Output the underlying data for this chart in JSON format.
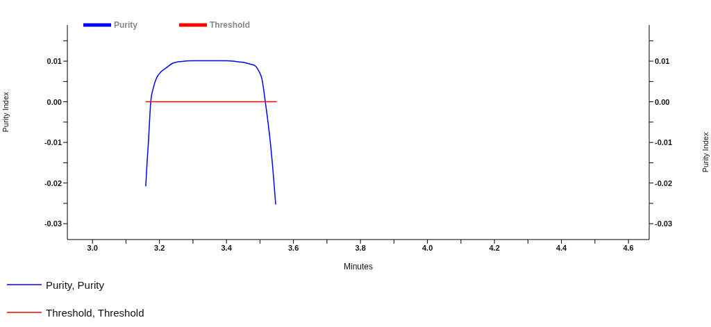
{
  "chart_data": {
    "type": "line",
    "xlabel": "Minutes",
    "ylabel": "Purity Index",
    "y2label": "Purity Index",
    "xlim": [
      2.925,
      4.662
    ],
    "xticks": [
      {
        "value": 3.0,
        "label": "3.0"
      },
      {
        "value": 3.1,
        "label": null
      },
      3.2,
      {
        "value": 3.3,
        "label": null
      },
      3.4,
      {
        "value": 3.5,
        "label": null
      },
      3.6,
      {
        "value": 3.7,
        "label": null
      },
      3.8,
      {
        "value": 3.9,
        "label": null
      },
      {
        "value": 4.0,
        "label": "4.0"
      },
      {
        "value": 4.1,
        "label": null
      },
      4.2,
      {
        "value": 4.3,
        "label": null
      },
      4.4,
      {
        "value": 4.5,
        "label": null
      },
      4.6
    ],
    "ylim": [
      -0.0339,
      0.0189
    ],
    "yticks": [
      -0.03,
      {
        "value": -0.025,
        "label": null
      },
      -0.02,
      {
        "value": -0.015,
        "label": null
      },
      -0.01,
      {
        "value": -0.005,
        "label": null
      },
      {
        "value": 0,
        "label": "0.00"
      },
      {
        "value": 0.005,
        "label": null
      },
      0.01,
      {
        "value": 0.015,
        "label": null
      }
    ],
    "y2lim": [
      -0.0339,
      0.0189
    ],
    "y2ticks": [
      -0.03,
      {
        "value": -0.025,
        "label": null
      },
      -0.02,
      {
        "value": -0.015,
        "label": null
      },
      -0.01,
      {
        "value": -0.005,
        "label": null
      },
      {
        "value": 0,
        "label": "0.00"
      },
      {
        "value": 0.005,
        "label": null
      },
      0.01,
      {
        "value": 0.015,
        "label": null
      }
    ],
    "series": [
      {
        "name": "Purity",
        "color": "#0000ff",
        "x": [
          3.159,
          3.163,
          3.167,
          3.174,
          3.182,
          3.19,
          3.205,
          3.221,
          3.24,
          3.263,
          3.3,
          3.35,
          3.4,
          3.43,
          3.45,
          3.47,
          3.485,
          3.497,
          3.506,
          3.516,
          3.524,
          3.531,
          3.54,
          3.547
        ],
        "values": [
          -0.0208,
          -0.015,
          -0.01,
          0.0,
          0.0035,
          0.0056,
          0.0074,
          0.0084,
          0.0095,
          0.0099,
          0.0101,
          0.0101,
          0.0101,
          0.0099,
          0.0097,
          0.0093,
          0.0089,
          0.0075,
          0.0056,
          0.0,
          -0.005,
          -0.01,
          -0.018,
          -0.0253
        ]
      },
      {
        "name": "Threshold",
        "color": "#ff0000",
        "x": [
          3.159,
          3.55
        ],
        "values": [
          0.0,
          0.0
        ]
      }
    ],
    "legend": "top left",
    "line_style": "solid",
    "marker": "none",
    "annotations": [
      "Purity, Purity",
      "Threshold, Threshold"
    ]
  }
}
